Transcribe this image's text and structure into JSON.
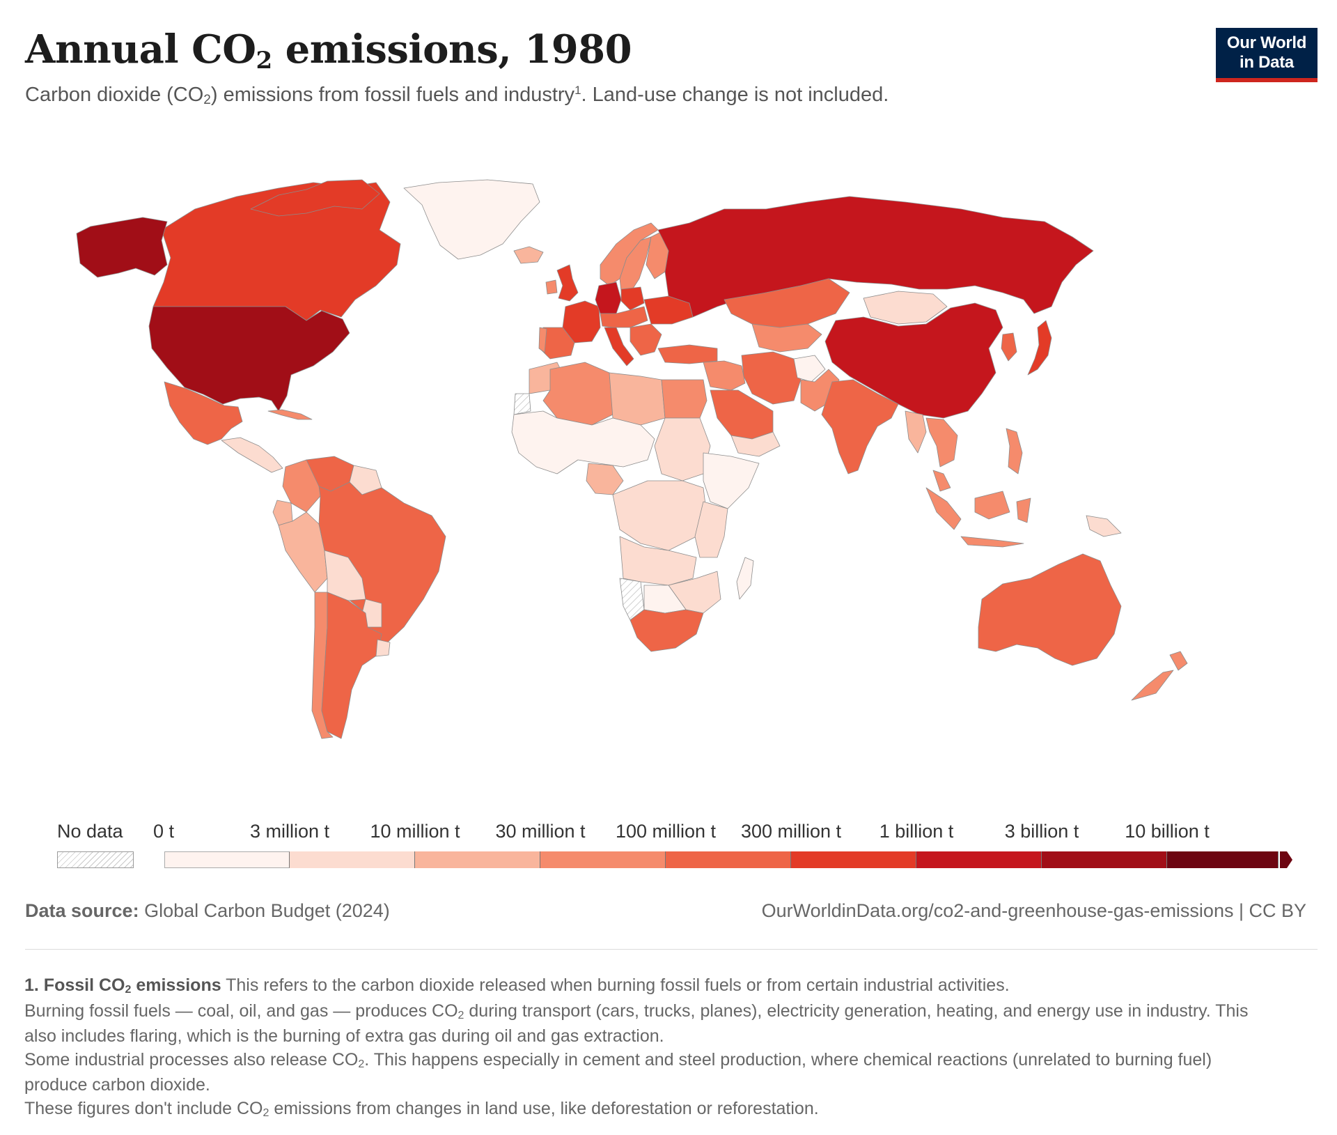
{
  "header": {
    "title_pre": "Annual CO",
    "title_sub": "2",
    "title_post": " emissions, 1980",
    "subtitle_pre": "Carbon dioxide (CO",
    "subtitle_sub": "2",
    "subtitle_mid": ") emissions from fossil fuels and industry",
    "subtitle_sup": "1",
    "subtitle_post": ". Land-use change is not included."
  },
  "logo": {
    "line1": "Our World",
    "line2": "in Data"
  },
  "legend": {
    "no_data_label": "No data",
    "bins": [
      {
        "label": "0 t",
        "color": "#fef3ef"
      },
      {
        "label": "3 million t",
        "color": "#fcdcd0"
      },
      {
        "label": "10 million t",
        "color": "#f9b59c"
      },
      {
        "label": "30 million t",
        "color": "#f58b6c"
      },
      {
        "label": "100 million t",
        "color": "#ee6547"
      },
      {
        "label": "300 million t",
        "color": "#e33b27"
      },
      {
        "label": "1 billion t",
        "color": "#c5161d"
      },
      {
        "label": "3 billion t",
        "color": "#a10e17"
      },
      {
        "label": "10 billion t",
        "color": "#6d0511"
      }
    ]
  },
  "source": {
    "label": "Data source:",
    "text": " Global Carbon Budget (2024)",
    "url": "OurWorldinData.org/co2-and-greenhouse-gas-emissions | CC BY"
  },
  "footnote": {
    "title_pre": "1. Fossil CO",
    "title_sub": "2",
    "title_post": " emissions",
    "intro": " This refers to the carbon dioxide released when burning fossil fuels or from certain industrial activities.",
    "p2_pre": "Burning fossil fuels — coal, oil, and gas — produces CO",
    "p2_sub": "2",
    "p2_post": " during transport (cars, trucks, planes), electricity generation, heating, and energy use in industry. This also includes flaring, which is the burning of extra gas during oil and gas extraction.",
    "p3_pre": "Some industrial processes also release CO",
    "p3_sub": "2",
    "p3_post": ". This happens especially in cement and steel production, where chemical reactions (unrelated to burning fuel) produce carbon dioxide.",
    "p4_pre": "These figures don't include CO",
    "p4_sub": "2",
    "p4_post": " emissions from changes in land use, like deforestation or reforestation."
  },
  "map": {
    "year": 1980,
    "regions": [
      {
        "name": "United States",
        "bin": 7
      },
      {
        "name": "Canada",
        "bin": 5
      },
      {
        "name": "Alaska",
        "bin": 7
      },
      {
        "name": "Greenland",
        "bin": 0
      },
      {
        "name": "Mexico",
        "bin": 4
      },
      {
        "name": "Central America",
        "bin": 1
      },
      {
        "name": "Cuba",
        "bin": 3
      },
      {
        "name": "Colombia",
        "bin": 3
      },
      {
        "name": "Venezuela",
        "bin": 4
      },
      {
        "name": "Guianas",
        "bin": 1
      },
      {
        "name": "Ecuador",
        "bin": 2
      },
      {
        "name": "Peru",
        "bin": 2
      },
      {
        "name": "Brazil",
        "bin": 4
      },
      {
        "name": "Bolivia",
        "bin": 1
      },
      {
        "name": "Paraguay",
        "bin": 1
      },
      {
        "name": "Chile",
        "bin": 3
      },
      {
        "name": "Argentina",
        "bin": 4
      },
      {
        "name": "Uruguay",
        "bin": 1
      },
      {
        "name": "Iceland",
        "bin": 2
      },
      {
        "name": "Norway",
        "bin": 3
      },
      {
        "name": "Sweden",
        "bin": 3
      },
      {
        "name": "Finland",
        "bin": 3
      },
      {
        "name": "United Kingdom",
        "bin": 5
      },
      {
        "name": "Ireland",
        "bin": 3
      },
      {
        "name": "France",
        "bin": 5
      },
      {
        "name": "Spain",
        "bin": 4
      },
      {
        "name": "Portugal",
        "bin": 3
      },
      {
        "name": "Germany",
        "bin": 6
      },
      {
        "name": "Poland",
        "bin": 5
      },
      {
        "name": "Italy",
        "bin": 5
      },
      {
        "name": "Central Europe",
        "bin": 4
      },
      {
        "name": "Balkans",
        "bin": 4
      },
      {
        "name": "Ukraine",
        "bin": 5
      },
      {
        "name": "Turkey",
        "bin": 4
      },
      {
        "name": "Russia / USSR",
        "bin": 6
      },
      {
        "name": "Kazakhstan",
        "bin": 4
      },
      {
        "name": "Central Asia",
        "bin": 3
      },
      {
        "name": "Mongolia",
        "bin": 1
      },
      {
        "name": "China",
        "bin": 6
      },
      {
        "name": "Korea",
        "bin": 4
      },
      {
        "name": "Japan",
        "bin": 5
      },
      {
        "name": "Iran",
        "bin": 4
      },
      {
        "name": "Iraq / Syria",
        "bin": 3
      },
      {
        "name": "Saudi Arabia",
        "bin": 4
      },
      {
        "name": "Yemen / Oman",
        "bin": 1
      },
      {
        "name": "Afghanistan",
        "bin": 0
      },
      {
        "name": "Pakistan",
        "bin": 3
      },
      {
        "name": "India",
        "bin": 4
      },
      {
        "name": "Southeast Asia",
        "bin": 2
      },
      {
        "name": "Thailand / Vietnam",
        "bin": 3
      },
      {
        "name": "Philippines",
        "bin": 3
      },
      {
        "name": "Malaysia",
        "bin": 3
      },
      {
        "name": "Indonesia",
        "bin": 3
      },
      {
        "name": "Papua New Guinea",
        "bin": 1
      },
      {
        "name": "Australia",
        "bin": 4
      },
      {
        "name": "New Zealand",
        "bin": 3
      },
      {
        "name": "Morocco",
        "bin": 2
      },
      {
        "name": "Algeria",
        "bin": 3
      },
      {
        "name": "Libya",
        "bin": 2
      },
      {
        "name": "Egypt",
        "bin": 3
      },
      {
        "name": "Sahel / West Africa",
        "bin": 0
      },
      {
        "name": "Nigeria",
        "bin": 2
      },
      {
        "name": "Sudan",
        "bin": 1
      },
      {
        "name": "Ethiopia / Horn",
        "bin": 0
      },
      {
        "name": "Central Africa",
        "bin": 1
      },
      {
        "name": "East Africa",
        "bin": 1
      },
      {
        "name": "Angola / Zambia",
        "bin": 1
      },
      {
        "name": "Zimbabwe / Mozambique",
        "bin": 1
      },
      {
        "name": "Botswana",
        "bin": 0
      },
      {
        "name": "South Africa",
        "bin": 4
      },
      {
        "name": "Madagascar",
        "bin": 0
      },
      {
        "name": "Namibia",
        "bin": -1
      },
      {
        "name": "Western Sahara",
        "bin": -1
      }
    ]
  }
}
